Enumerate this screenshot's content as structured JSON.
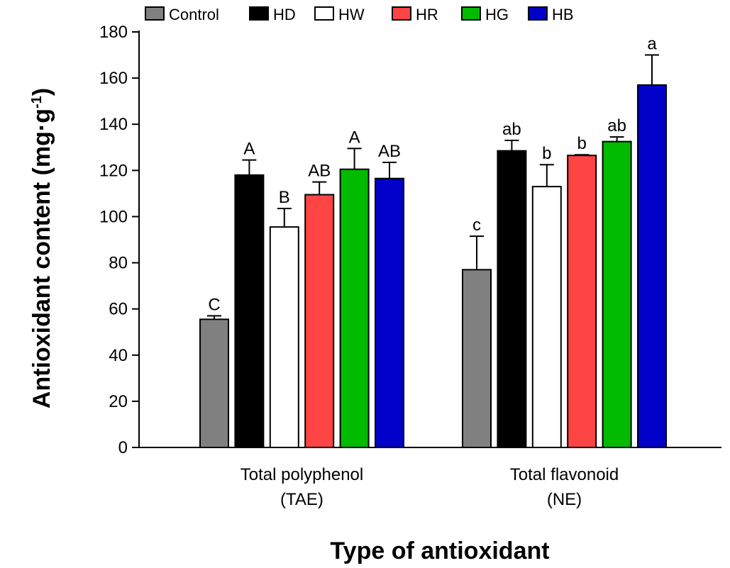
{
  "chart_data": {
    "type": "bar",
    "ylabel": "Antioxidant content (mg·g",
    "ylabel_sup": "-1",
    "ylabel_close": ")",
    "xlabel": "Type of antioxidant",
    "ylim": [
      0,
      180
    ],
    "yticks": [
      0,
      20,
      40,
      60,
      80,
      100,
      120,
      140,
      160,
      180
    ],
    "legend_position": "top",
    "categories": [
      {
        "line1": "Total polyphenol",
        "line2": "(TAE)"
      },
      {
        "line1": "Total flavonoid",
        "line2": "(NE)"
      }
    ],
    "series": [
      {
        "name": "Control",
        "color": "#808080",
        "values": [
          55.5,
          77
        ],
        "errors": [
          1.5,
          14.5
        ],
        "sig": [
          "C",
          "c"
        ]
      },
      {
        "name": "HD",
        "color": "#000000",
        "values": [
          118,
          128.5
        ],
        "errors": [
          6.5,
          4.5
        ],
        "sig": [
          "A",
          "ab"
        ]
      },
      {
        "name": "HW",
        "color": "#ffffff",
        "values": [
          95.5,
          113
        ],
        "errors": [
          8,
          9.5
        ],
        "sig": [
          "B",
          "b"
        ]
      },
      {
        "name": "HR",
        "color": "#ff4444",
        "values": [
          109.5,
          126.5
        ],
        "errors": [
          5.5,
          0.3
        ],
        "sig": [
          "AB",
          "b"
        ]
      },
      {
        "name": "HG",
        "color": "#00bb00",
        "values": [
          120.5,
          132.5
        ],
        "errors": [
          9,
          2
        ],
        "sig": [
          "A",
          "ab"
        ]
      },
      {
        "name": "HB",
        "color": "#0000c8",
        "values": [
          116.5,
          157
        ],
        "errors": [
          7,
          13
        ],
        "sig": [
          "AB",
          "a"
        ]
      }
    ]
  }
}
